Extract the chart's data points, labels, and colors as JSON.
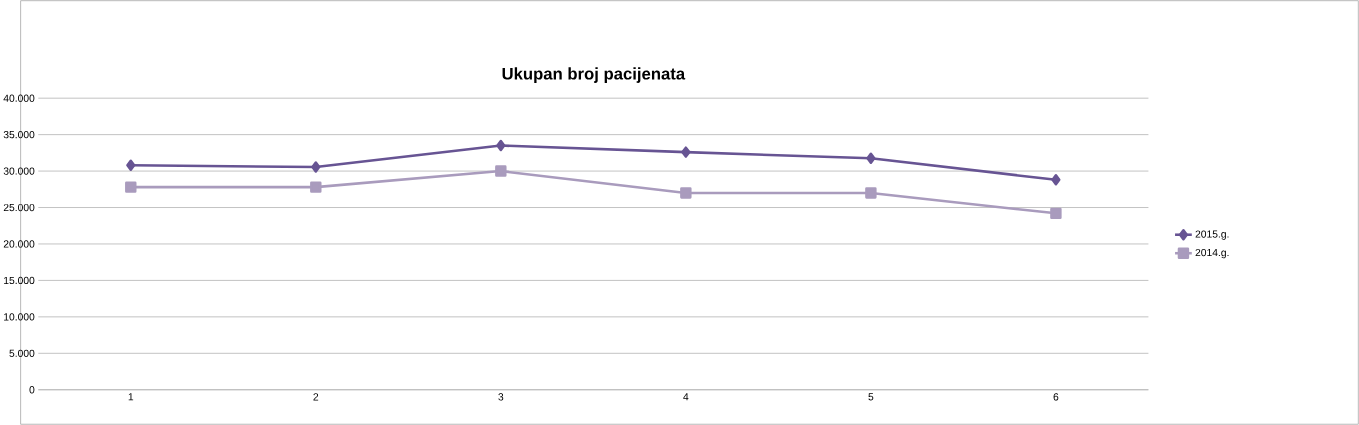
{
  "chart_data": {
    "type": "line",
    "title": "Ukupan broj pacijenata",
    "categories": [
      "1",
      "2",
      "3",
      "4",
      "5",
      "6"
    ],
    "series": [
      {
        "name": "2015.g.",
        "color": "#675493",
        "marker": "diamond",
        "values": [
          30800,
          30550,
          33500,
          32600,
          31750,
          28800
        ]
      },
      {
        "name": "2014.g.",
        "color": "#a99bbd",
        "marker": "square",
        "values": [
          27800,
          27800,
          30000,
          27000,
          27000,
          24200
        ]
      }
    ],
    "ylim": [
      0,
      40000
    ],
    "yticks": [
      0,
      {
        "value": 5000,
        "label": "5.000"
      },
      {
        "value": 10000,
        "label": "10.000"
      },
      {
        "value": 15000,
        "label": "15.000"
      },
      {
        "value": 20000,
        "label": "20.000"
      },
      {
        "value": 25000,
        "label": "25.000"
      },
      {
        "value": 30000,
        "label": "30.000"
      },
      {
        "value": 35000,
        "label": "35.000"
      },
      {
        "value": 40000,
        "label": "40.000"
      }
    ],
    "grid": "y",
    "legend": "right",
    "line_style": "solid"
  }
}
